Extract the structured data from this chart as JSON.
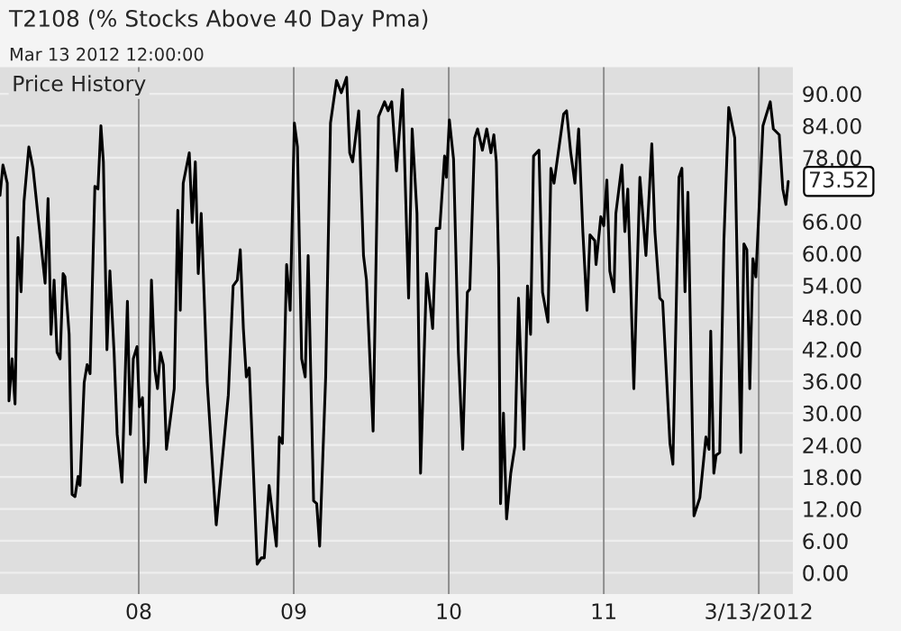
{
  "chart_data": {
    "type": "line",
    "title": "T2108 (% Stocks Above 40 Day Pma)",
    "subtitle": "Mar 13 2012 12:00:00",
    "annotations": [
      "Price History",
      {
        "text": "73.52",
        "x": 2012.19,
        "y": 73.52
      }
    ],
    "x": [
      2007.105,
      2007.124,
      2007.152,
      2007.163,
      2007.183,
      2007.202,
      2007.221,
      2007.241,
      2007.26,
      2007.291,
      2007.318,
      2007.396,
      2007.415,
      2007.434,
      2007.454,
      2007.473,
      2007.493,
      2007.512,
      2007.524,
      2007.551,
      2007.57,
      2007.589,
      2007.609,
      2007.621,
      2007.648,
      2007.667,
      2007.686,
      2007.717,
      2007.737,
      2007.756,
      2007.772,
      2007.795,
      2007.814,
      2007.841,
      2007.861,
      2007.892,
      2007.927,
      2007.946,
      2007.965,
      2007.989,
      2008.004,
      2008.024,
      2008.043,
      2008.062,
      2008.082,
      2008.105,
      2008.121,
      2008.14,
      2008.159,
      2008.179,
      2008.229,
      2008.252,
      2008.268,
      2008.287,
      2008.326,
      2008.345,
      2008.365,
      2008.384,
      2008.403,
      2008.442,
      2008.5,
      2008.578,
      2008.609,
      2008.636,
      2008.655,
      2008.675,
      2008.694,
      2008.713,
      2008.764,
      2008.791,
      2008.81,
      2008.841,
      2008.888,
      2008.907,
      2008.927,
      2008.954,
      2008.977,
      2009.004,
      2009.024,
      2009.051,
      2009.074,
      2009.093,
      2009.128,
      2009.148,
      2009.167,
      2009.206,
      2009.237,
      2009.276,
      2009.307,
      2009.341,
      2009.361,
      2009.38,
      2009.419,
      2009.45,
      2009.469,
      2009.512,
      2009.547,
      2009.586,
      2009.609,
      2009.632,
      2009.663,
      2009.702,
      2009.741,
      2009.764,
      2009.795,
      2009.818,
      2009.857,
      2009.888,
      2009.896,
      2009.919,
      2009.942,
      2009.973,
      2009.985,
      2010.004,
      2010.031,
      2010.062,
      2010.09,
      2010.12,
      2010.136,
      2010.167,
      2010.186,
      2010.217,
      2010.245,
      2010.272,
      2010.291,
      2010.307,
      2010.322,
      2010.334,
      2010.353,
      2010.373,
      2010.4,
      2010.427,
      2010.45,
      2010.485,
      2010.508,
      2010.528,
      2010.547,
      2010.582,
      2010.605,
      2010.64,
      2010.659,
      2010.679,
      2010.741,
      2010.76,
      2010.787,
      2010.814,
      2010.838,
      2010.865,
      2010.892,
      2010.911,
      2010.942,
      2010.95,
      2010.981,
      2011.0,
      2011.02,
      2011.039,
      2011.066,
      2011.078,
      2011.117,
      2011.136,
      2011.155,
      2011.194,
      2011.233,
      2011.272,
      2011.31,
      2011.33,
      2011.361,
      2011.38,
      2011.427,
      2011.446,
      2011.485,
      2011.504,
      2011.524,
      2011.543,
      2011.582,
      2011.62,
      2011.659,
      2011.679,
      2011.69,
      2011.71,
      2011.725,
      2011.748,
      2011.775,
      2011.806,
      2011.845,
      2011.884,
      2011.904,
      2011.923,
      2011.942,
      2011.962,
      2011.981,
      2012.027,
      2012.074,
      2012.094,
      2012.132,
      2012.155,
      2012.175,
      2012.19
    ],
    "series": [
      {
        "color": "#000000",
        "values": [
          70.9,
          76.6,
          73.2,
          32.3,
          40.2,
          31.7,
          63.0,
          52.8,
          69.8,
          80.0,
          76.0,
          54.4,
          70.3,
          44.8,
          55.0,
          41.4,
          40.2,
          56.2,
          55.6,
          44.8,
          14.7,
          14.3,
          18.1,
          16.4,
          35.7,
          39.1,
          37.4,
          72.6,
          72.1,
          84.0,
          77.2,
          41.9,
          56.7,
          41.4,
          26.0,
          17.0,
          51.0,
          26.0,
          40.2,
          42.5,
          31.2,
          32.9,
          17.0,
          24.3,
          55.0,
          38.0,
          34.6,
          41.4,
          39.1,
          23.2,
          34.6,
          68.1,
          49.3,
          73.2,
          78.9,
          65.8,
          77.2,
          56.2,
          67.5,
          35.7,
          9.0,
          33.4,
          53.9,
          55.0,
          60.7,
          45.9,
          36.8,
          38.5,
          1.6,
          2.8,
          2.8,
          16.4,
          5.0,
          25.5,
          24.3,
          57.9,
          49.3,
          84.5,
          80.0,
          40.2,
          36.8,
          59.6,
          13.5,
          13.0,
          5.0,
          36.8,
          84.5,
          92.5,
          90.2,
          93.1,
          78.9,
          77.2,
          86.8,
          59.6,
          55.0,
          26.6,
          85.7,
          88.5,
          86.8,
          88.5,
          75.5,
          90.8,
          51.6,
          83.4,
          67.5,
          18.7,
          56.2,
          48.2,
          45.9,
          64.7,
          64.7,
          78.3,
          74.3,
          85.1,
          77.7,
          41.4,
          23.2,
          52.7,
          53.3,
          81.7,
          83.4,
          79.4,
          83.4,
          78.9,
          82.3,
          77.2,
          57.3,
          13.0,
          30.0,
          10.1,
          18.7,
          23.8,
          51.6,
          23.2,
          53.9,
          44.8,
          78.3,
          79.4,
          52.7,
          47.1,
          76.0,
          73.2,
          86.2,
          86.8,
          78.9,
          73.2,
          83.4,
          64.1,
          49.3,
          63.5,
          62.4,
          57.9,
          66.9,
          65.2,
          73.8,
          56.7,
          52.8,
          67.5,
          76.6,
          64.1,
          72.1,
          34.6,
          74.3,
          59.6,
          80.6,
          64.1,
          51.6,
          51.0,
          24.3,
          20.4,
          74.3,
          76.0,
          52.8,
          71.5,
          10.7,
          14.1,
          25.5,
          23.2,
          45.4,
          18.7,
          22.1,
          22.6,
          62.4,
          87.4,
          81.7,
          22.6,
          61.8,
          60.7,
          34.6,
          59.0,
          55.6,
          84.0,
          88.5,
          83.4,
          82.3,
          72.1,
          69.2,
          73.52
        ]
      }
    ],
    "xlim": [
      2007.105,
      2012.22
    ],
    "ylim": [
      -4,
      95
    ],
    "xticks": [
      {
        "value": 2008,
        "label": "08"
      },
      {
        "value": 2009,
        "label": "09"
      },
      {
        "value": 2010,
        "label": "10"
      },
      {
        "value": 2011,
        "label": "11"
      },
      {
        "value": 2012.0,
        "label": "3/13/2012"
      }
    ],
    "yticks": [
      {
        "value": 0,
        "label": "0.00"
      },
      {
        "value": 6,
        "label": "6.00"
      },
      {
        "value": 12,
        "label": "12.00"
      },
      {
        "value": 18,
        "label": "18.00"
      },
      {
        "value": 24,
        "label": "24.00"
      },
      {
        "value": 30,
        "label": "30.00"
      },
      {
        "value": 36,
        "label": "36.00"
      },
      {
        "value": 42,
        "label": "42.00"
      },
      {
        "value": 48,
        "label": "48.00"
      },
      {
        "value": 54,
        "label": "54.00"
      },
      {
        "value": 60,
        "label": "60.00"
      },
      {
        "value": 66,
        "label": "66.00"
      },
      {
        "value": 78,
        "label": "78.00"
      },
      {
        "value": 84,
        "label": "84.00"
      },
      {
        "value": 90,
        "label": "90.00"
      }
    ],
    "grid": true,
    "legend": false
  }
}
